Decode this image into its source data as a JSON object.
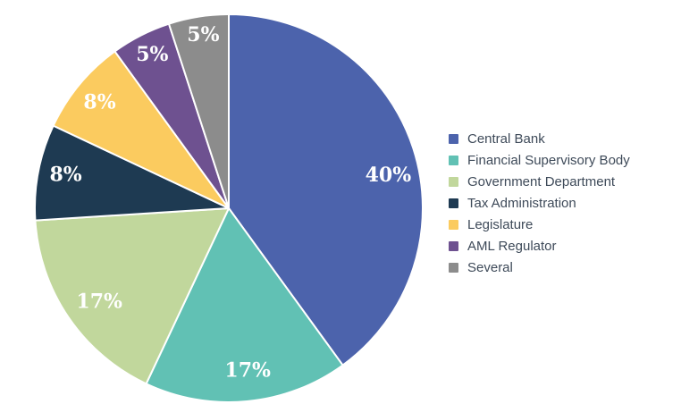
{
  "figure": {
    "background": "#FFFFFF",
    "label_text_color": "#FFFFFF",
    "legend_text_color": "#3E4A59"
  },
  "chart_data": {
    "type": "pie",
    "title": "",
    "direction": "clockwise",
    "start_angle_deg": 0,
    "legend_position": "right",
    "slices": [
      {
        "label": "Central Bank",
        "value": 40,
        "display": "40%",
        "color": "#4C63AC"
      },
      {
        "label": "Financial Supervisory Body",
        "value": 17,
        "display": "17%",
        "color": "#61C1B4"
      },
      {
        "label": "Government Department",
        "value": 17,
        "display": "17%",
        "color": "#C1D79C"
      },
      {
        "label": "Tax Administration",
        "value": 8,
        "display": "8%",
        "color": "#1E3A52"
      },
      {
        "label": "Legislature",
        "value": 8,
        "display": "8%",
        "color": "#FBCB5F"
      },
      {
        "label": "AML Regulator",
        "value": 5,
        "display": "5%",
        "color": "#6E5190"
      },
      {
        "label": "Several",
        "value": 5,
        "display": "5%",
        "color": "#8C8C8C"
      }
    ]
  }
}
